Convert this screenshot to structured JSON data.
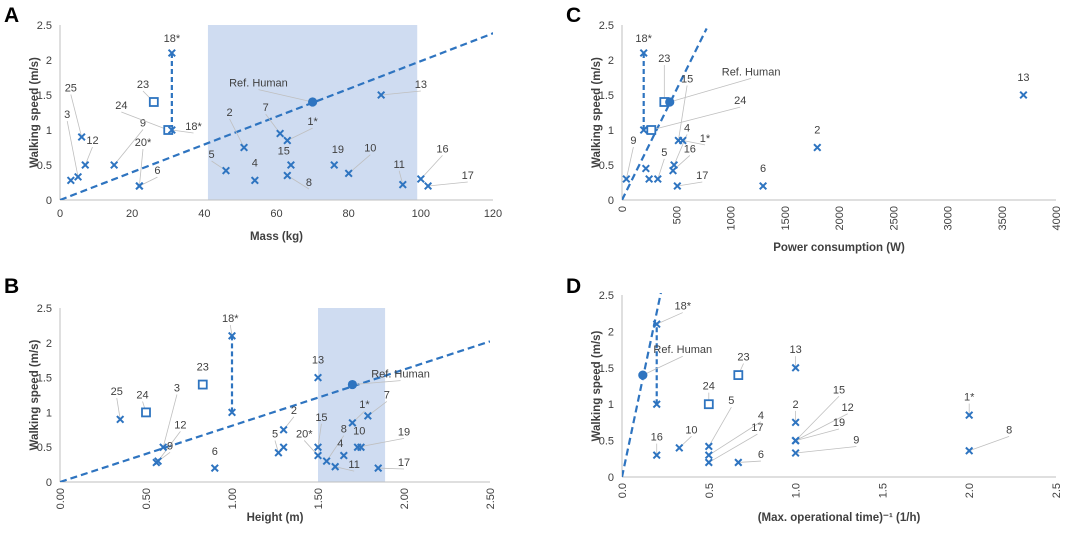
{
  "colors": {
    "marker": "#2e74c0",
    "band": "#cfdcf1",
    "axis": "#bfbfbf",
    "leader": "#bfbfbf",
    "text": "#404040"
  },
  "chart_data": [
    {
      "panel": "A",
      "type": "scatter",
      "xlabel": "Mass (kg)",
      "ylabel": "Walking speed (m/s)",
      "xlim": [
        0,
        120
      ],
      "ylim": [
        0,
        2.5
      ],
      "xticks": [
        "0",
        "20",
        "40",
        "60",
        "80",
        "100",
        "120"
      ],
      "x_tick_values": [
        0,
        20,
        40,
        60,
        80,
        100,
        120
      ],
      "yticks": [
        "0",
        "0.5",
        "1",
        "1.5",
        "2",
        "2.5"
      ],
      "y_tick_values": [
        0,
        0.5,
        1,
        1.5,
        2,
        2.5
      ],
      "band": {
        "x0": 41,
        "x1": 99
      },
      "trend": {
        "from": [
          0,
          0
        ],
        "to": [
          127,
          2.52
        ]
      },
      "dropline": {
        "x": 31,
        "from": 1.0,
        "to": 2.1
      },
      "points": [
        {
          "label": "3",
          "x": 5,
          "y": 0.33,
          "marker": "x",
          "lx": 2,
          "ly": 1.17
        },
        {
          "label": "25",
          "x": 6,
          "y": 0.9,
          "marker": "x",
          "lx": 3,
          "ly": 1.55
        },
        {
          "label": "12",
          "x": 7,
          "y": 0.5,
          "marker": "x",
          "lx": 9,
          "ly": 0.8
        },
        {
          "label": "",
          "x": 3,
          "y": 0.28,
          "marker": "x"
        },
        {
          "label": "9",
          "x": 15,
          "y": 0.5,
          "marker": "x",
          "lx": 23,
          "ly": 1.05
        },
        {
          "label": "20*",
          "x": 22,
          "y": 0.2,
          "marker": "x",
          "lx": 23,
          "ly": 0.77
        },
        {
          "label": "6",
          "x": 22,
          "y": 0.2,
          "marker": "x",
          "lx": 27,
          "ly": 0.37
        },
        {
          "label": "23",
          "x": 26,
          "y": 1.4,
          "marker": "square",
          "lx": 23,
          "ly": 1.6
        },
        {
          "label": "24",
          "x": 30,
          "y": 1.0,
          "marker": "square",
          "lx": 17,
          "ly": 1.3
        },
        {
          "label": "18*",
          "x": 31,
          "y": 1.0,
          "marker": "x",
          "lx": 37,
          "ly": 1.0
        },
        {
          "label": "18*",
          "x": 31,
          "y": 2.1,
          "marker": "x",
          "lx": 31,
          "ly": 2.26
        },
        {
          "label": "5",
          "x": 46,
          "y": 0.42,
          "marker": "x",
          "lx": 42,
          "ly": 0.6
        },
        {
          "label": "2",
          "x": 51,
          "y": 0.75,
          "marker": "x",
          "lx": 47,
          "ly": 1.2
        },
        {
          "label": "4",
          "x": 54,
          "y": 0.28,
          "marker": "x",
          "lx": 54,
          "ly": 0.48
        },
        {
          "label": "7",
          "x": 61,
          "y": 0.95,
          "marker": "x",
          "lx": 57,
          "ly": 1.27
        },
        {
          "label": "1*",
          "x": 63,
          "y": 0.85,
          "marker": "x",
          "lx": 70,
          "ly": 1.07
        },
        {
          "label": "15",
          "x": 64,
          "y": 0.5,
          "marker": "x",
          "lx": 62,
          "ly": 0.65
        },
        {
          "label": "8",
          "x": 63,
          "y": 0.35,
          "marker": "x",
          "lx": 69,
          "ly": 0.2
        },
        {
          "label": "19",
          "x": 76,
          "y": 0.5,
          "marker": "x",
          "lx": 77,
          "ly": 0.67
        },
        {
          "label": "10",
          "x": 80,
          "y": 0.38,
          "marker": "x",
          "lx": 86,
          "ly": 0.69
        },
        {
          "label": "Ref. Human",
          "x": 70,
          "y": 1.4,
          "marker": "dot",
          "lx": 55,
          "ly": 1.62
        },
        {
          "label": "13",
          "x": 89,
          "y": 1.5,
          "marker": "x",
          "lx": 100,
          "ly": 1.6
        },
        {
          "label": "11",
          "x": 95,
          "y": 0.22,
          "marker": "x",
          "lx": 94,
          "ly": 0.46
        },
        {
          "label": "16",
          "x": 100,
          "y": 0.3,
          "marker": "x",
          "lx": 106,
          "ly": 0.68
        },
        {
          "label": "17",
          "x": 102,
          "y": 0.2,
          "marker": "x",
          "lx": 113,
          "ly": 0.3
        }
      ]
    },
    {
      "panel": "B",
      "type": "scatter",
      "xlabel": "Height (m)",
      "ylabel": "Walking speed (m/s)",
      "xlim": [
        0,
        2.5
      ],
      "ylim": [
        0,
        2.5
      ],
      "xticks": [
        "0.00",
        "0.50",
        "1.00",
        "1.50",
        "2.00",
        "2.50"
      ],
      "x_tick_values": [
        0,
        0.5,
        1,
        1.5,
        2,
        2.5
      ],
      "yticks": [
        "0",
        "0.5",
        "1",
        "1.5",
        "2",
        "2.5"
      ],
      "y_tick_values": [
        0,
        0.5,
        1,
        1.5,
        2,
        2.5
      ],
      "band": {
        "x0": 1.5,
        "x1": 1.89
      },
      "trend": {
        "from": [
          0,
          0
        ],
        "to": [
          2.5,
          2.02
        ]
      },
      "dropline": {
        "x": 1.0,
        "from": 1.0,
        "to": 2.1
      },
      "points": [
        {
          "label": "25",
          "x": 0.35,
          "y": 0.9,
          "marker": "x",
          "lx": 0.33,
          "ly": 1.25
        },
        {
          "label": "24",
          "x": 0.5,
          "y": 1.0,
          "marker": "square",
          "lx": 0.48,
          "ly": 1.2
        },
        {
          "label": "3",
          "x": 0.6,
          "y": 0.5,
          "marker": "x",
          "lx": 0.68,
          "ly": 1.3
        },
        {
          "label": "12",
          "x": 0.57,
          "y": 0.3,
          "marker": "x",
          "lx": 0.7,
          "ly": 0.77
        },
        {
          "label": "9",
          "x": 0.56,
          "y": 0.28,
          "marker": "x",
          "lx": 0.64,
          "ly": 0.47
        },
        {
          "label": "6",
          "x": 0.9,
          "y": 0.2,
          "marker": "x",
          "lx": 0.9,
          "ly": 0.39
        },
        {
          "label": "23",
          "x": 0.83,
          "y": 1.4,
          "marker": "square",
          "lx": 0.83,
          "ly": 1.6
        },
        {
          "label": "18*",
          "x": 1.0,
          "y": 2.1,
          "marker": "x",
          "lx": 0.99,
          "ly": 2.3
        },
        {
          "label": "",
          "x": 1.0,
          "y": 1.0,
          "marker": "x"
        },
        {
          "label": "2",
          "x": 1.3,
          "y": 0.75,
          "marker": "x",
          "lx": 1.36,
          "ly": 0.98
        },
        {
          "label": "5",
          "x": 1.27,
          "y": 0.42,
          "marker": "x",
          "lx": 1.25,
          "ly": 0.64
        },
        {
          "label": "",
          "x": 1.3,
          "y": 0.5,
          "marker": "x"
        },
        {
          "label": "13",
          "x": 1.5,
          "y": 1.5,
          "marker": "x",
          "lx": 1.5,
          "ly": 1.7
        },
        {
          "label": "Ref. Human",
          "x": 1.7,
          "y": 1.4,
          "marker": "dot",
          "lx": 1.98,
          "ly": 1.5
        },
        {
          "label": "15",
          "x": 1.5,
          "y": 0.5,
          "marker": "x",
          "lx": 1.52,
          "ly": 0.88
        },
        {
          "label": "20*",
          "x": 1.5,
          "y": 0.38,
          "marker": "x",
          "lx": 1.42,
          "ly": 0.64
        },
        {
          "label": "8",
          "x": 1.55,
          "y": 0.3,
          "marker": "x",
          "lx": 1.65,
          "ly": 0.71
        },
        {
          "label": "4",
          "x": 1.65,
          "y": 0.38,
          "marker": "x",
          "lx": 1.63,
          "ly": 0.5
        },
        {
          "label": "11",
          "x": 1.6,
          "y": 0.22,
          "marker": "x",
          "lx": 1.71,
          "ly": 0.2
        },
        {
          "label": "1*",
          "x": 1.7,
          "y": 0.85,
          "marker": "x",
          "lx": 1.77,
          "ly": 1.06
        },
        {
          "label": "10",
          "x": 1.75,
          "y": 0.5,
          "marker": "x",
          "lx": 1.74,
          "ly": 0.68
        },
        {
          "label": "7",
          "x": 1.79,
          "y": 0.95,
          "marker": "x",
          "lx": 1.9,
          "ly": 1.2
        },
        {
          "label": "19",
          "x": 1.73,
          "y": 0.5,
          "marker": "x",
          "lx": 2.0,
          "ly": 0.67
        },
        {
          "label": "17",
          "x": 1.85,
          "y": 0.2,
          "marker": "x",
          "lx": 2.0,
          "ly": 0.23
        }
      ]
    },
    {
      "panel": "C",
      "type": "scatter",
      "xlabel": "Power consumption (W)",
      "ylabel": "Walking speed (m/s)",
      "xlim": [
        0,
        4000
      ],
      "ylim": [
        0,
        2.5
      ],
      "xticks": [
        "0",
        "500",
        "1000",
        "1500",
        "2000",
        "2500",
        "3000",
        "3500",
        "4000"
      ],
      "x_tick_values": [
        0,
        500,
        1000,
        1500,
        2000,
        2500,
        3000,
        3500,
        4000
      ],
      "yticks": [
        "0",
        "0.5",
        "1",
        "1.5",
        "2",
        "2.5"
      ],
      "y_tick_values": [
        0,
        0.5,
        1,
        1.5,
        2,
        2.5
      ],
      "trend": {
        "from": [
          0,
          0
        ],
        "to": [
          780,
          2.45
        ]
      },
      "dropline": {
        "x": 200,
        "from": 1.0,
        "to": 2.1
      },
      "points": [
        {
          "label": "18*",
          "x": 200,
          "y": 2.1,
          "marker": "x",
          "lx": 200,
          "ly": 2.26
        },
        {
          "label": "23",
          "x": 390,
          "y": 1.4,
          "marker": "square",
          "lx": 390,
          "ly": 1.97
        },
        {
          "label": "Ref. Human",
          "x": 440,
          "y": 1.4,
          "marker": "dot",
          "lx": 1190,
          "ly": 1.78
        },
        {
          "label": "24",
          "x": 270,
          "y": 1.0,
          "marker": "square",
          "lx": 1090,
          "ly": 1.37
        },
        {
          "label": "15",
          "x": 520,
          "y": 0.85,
          "marker": "x",
          "lx": 600,
          "ly": 1.68
        },
        {
          "label": "",
          "x": 200,
          "y": 1.0,
          "marker": "x"
        },
        {
          "label": "9",
          "x": 40,
          "y": 0.3,
          "marker": "x",
          "lx": 105,
          "ly": 0.8
        },
        {
          "label": "4",
          "x": 480,
          "y": 0.5,
          "marker": "x",
          "lx": 600,
          "ly": 0.98
        },
        {
          "label": "1*",
          "x": 560,
          "y": 0.85,
          "marker": "x",
          "lx": 765,
          "ly": 0.83
        },
        {
          "label": "16",
          "x": 470,
          "y": 0.42,
          "marker": "x",
          "lx": 625,
          "ly": 0.68
        },
        {
          "label": "5",
          "x": 330,
          "y": 0.3,
          "marker": "x",
          "lx": 390,
          "ly": 0.63
        },
        {
          "label": "",
          "x": 220,
          "y": 0.45,
          "marker": "x"
        },
        {
          "label": "",
          "x": 250,
          "y": 0.3,
          "marker": "x"
        },
        {
          "label": "17",
          "x": 510,
          "y": 0.2,
          "marker": "x",
          "lx": 740,
          "ly": 0.3
        },
        {
          "label": "6",
          "x": 1300,
          "y": 0.2,
          "marker": "x",
          "lx": 1300,
          "ly": 0.4
        },
        {
          "label": "2",
          "x": 1800,
          "y": 0.75,
          "marker": "x",
          "lx": 1800,
          "ly": 0.95
        },
        {
          "label": "13",
          "x": 3700,
          "y": 1.5,
          "marker": "x",
          "lx": 3700,
          "ly": 1.7
        }
      ]
    },
    {
      "panel": "D",
      "type": "scatter",
      "xlabel": "(Max. operational time)⁻¹ (1/h)",
      "ylabel": "Walking speed (m/s)",
      "xlim": [
        0,
        2.5
      ],
      "ylim": [
        0,
        2.5
      ],
      "xticks": [
        "0.0",
        "0.5",
        "1.0",
        "1.5",
        "2.0",
        "2.5"
      ],
      "x_tick_values": [
        0,
        0.5,
        1,
        1.5,
        2,
        2.5
      ],
      "yticks": [
        "0",
        "0.5",
        "1",
        "1.5",
        "2",
        "2.5"
      ],
      "y_tick_values": [
        0,
        0.5,
        1,
        1.5,
        2,
        2.5
      ],
      "trend": {
        "from": [
          0,
          0
        ],
        "to": [
          0.23,
          2.6
        ]
      },
      "dropline": {
        "x": 0.2,
        "from": 1.0,
        "to": 2.1
      },
      "points": [
        {
          "label": "18*",
          "x": 0.2,
          "y": 2.1,
          "marker": "x",
          "lx": 0.35,
          "ly": 2.3
        },
        {
          "label": "Ref. Human",
          "x": 0.12,
          "y": 1.4,
          "marker": "dot",
          "lx": 0.35,
          "ly": 1.7
        },
        {
          "label": "",
          "x": 0.2,
          "y": 1.0,
          "marker": "x"
        },
        {
          "label": "16",
          "x": 0.2,
          "y": 0.3,
          "marker": "x",
          "lx": 0.2,
          "ly": 0.5
        },
        {
          "label": "10",
          "x": 0.33,
          "y": 0.4,
          "marker": "x",
          "lx": 0.4,
          "ly": 0.6
        },
        {
          "label": "23",
          "x": 0.67,
          "y": 1.4,
          "marker": "square",
          "lx": 0.7,
          "ly": 1.6
        },
        {
          "label": "24",
          "x": 0.5,
          "y": 1.0,
          "marker": "square",
          "lx": 0.5,
          "ly": 1.2
        },
        {
          "label": "5",
          "x": 0.5,
          "y": 0.42,
          "marker": "x",
          "lx": 0.63,
          "ly": 1.0
        },
        {
          "label": "4",
          "x": 0.5,
          "y": 0.3,
          "marker": "x",
          "lx": 0.8,
          "ly": 0.8
        },
        {
          "label": "17",
          "x": 0.5,
          "y": 0.2,
          "marker": "x",
          "lx": 0.78,
          "ly": 0.63
        },
        {
          "label": "6",
          "x": 0.67,
          "y": 0.2,
          "marker": "x",
          "lx": 0.8,
          "ly": 0.26
        },
        {
          "label": "13",
          "x": 1.0,
          "y": 1.5,
          "marker": "x",
          "lx": 1.0,
          "ly": 1.7
        },
        {
          "label": "2",
          "x": 1.0,
          "y": 0.75,
          "marker": "x",
          "lx": 1.0,
          "ly": 0.95
        },
        {
          "label": "15",
          "x": 1.0,
          "y": 0.5,
          "marker": "x",
          "lx": 1.25,
          "ly": 1.15
        },
        {
          "label": "12",
          "x": 1.0,
          "y": 0.5,
          "marker": "x",
          "lx": 1.3,
          "ly": 0.91
        },
        {
          "label": "19",
          "x": 1.0,
          "y": 0.5,
          "marker": "x",
          "lx": 1.25,
          "ly": 0.7
        },
        {
          "label": "9",
          "x": 1.0,
          "y": 0.33,
          "marker": "x",
          "lx": 1.35,
          "ly": 0.46
        },
        {
          "label": "1*",
          "x": 2.0,
          "y": 0.85,
          "marker": "x",
          "lx": 2.0,
          "ly": 1.05
        },
        {
          "label": "8",
          "x": 2.0,
          "y": 0.36,
          "marker": "x",
          "lx": 2.23,
          "ly": 0.6
        }
      ]
    }
  ]
}
